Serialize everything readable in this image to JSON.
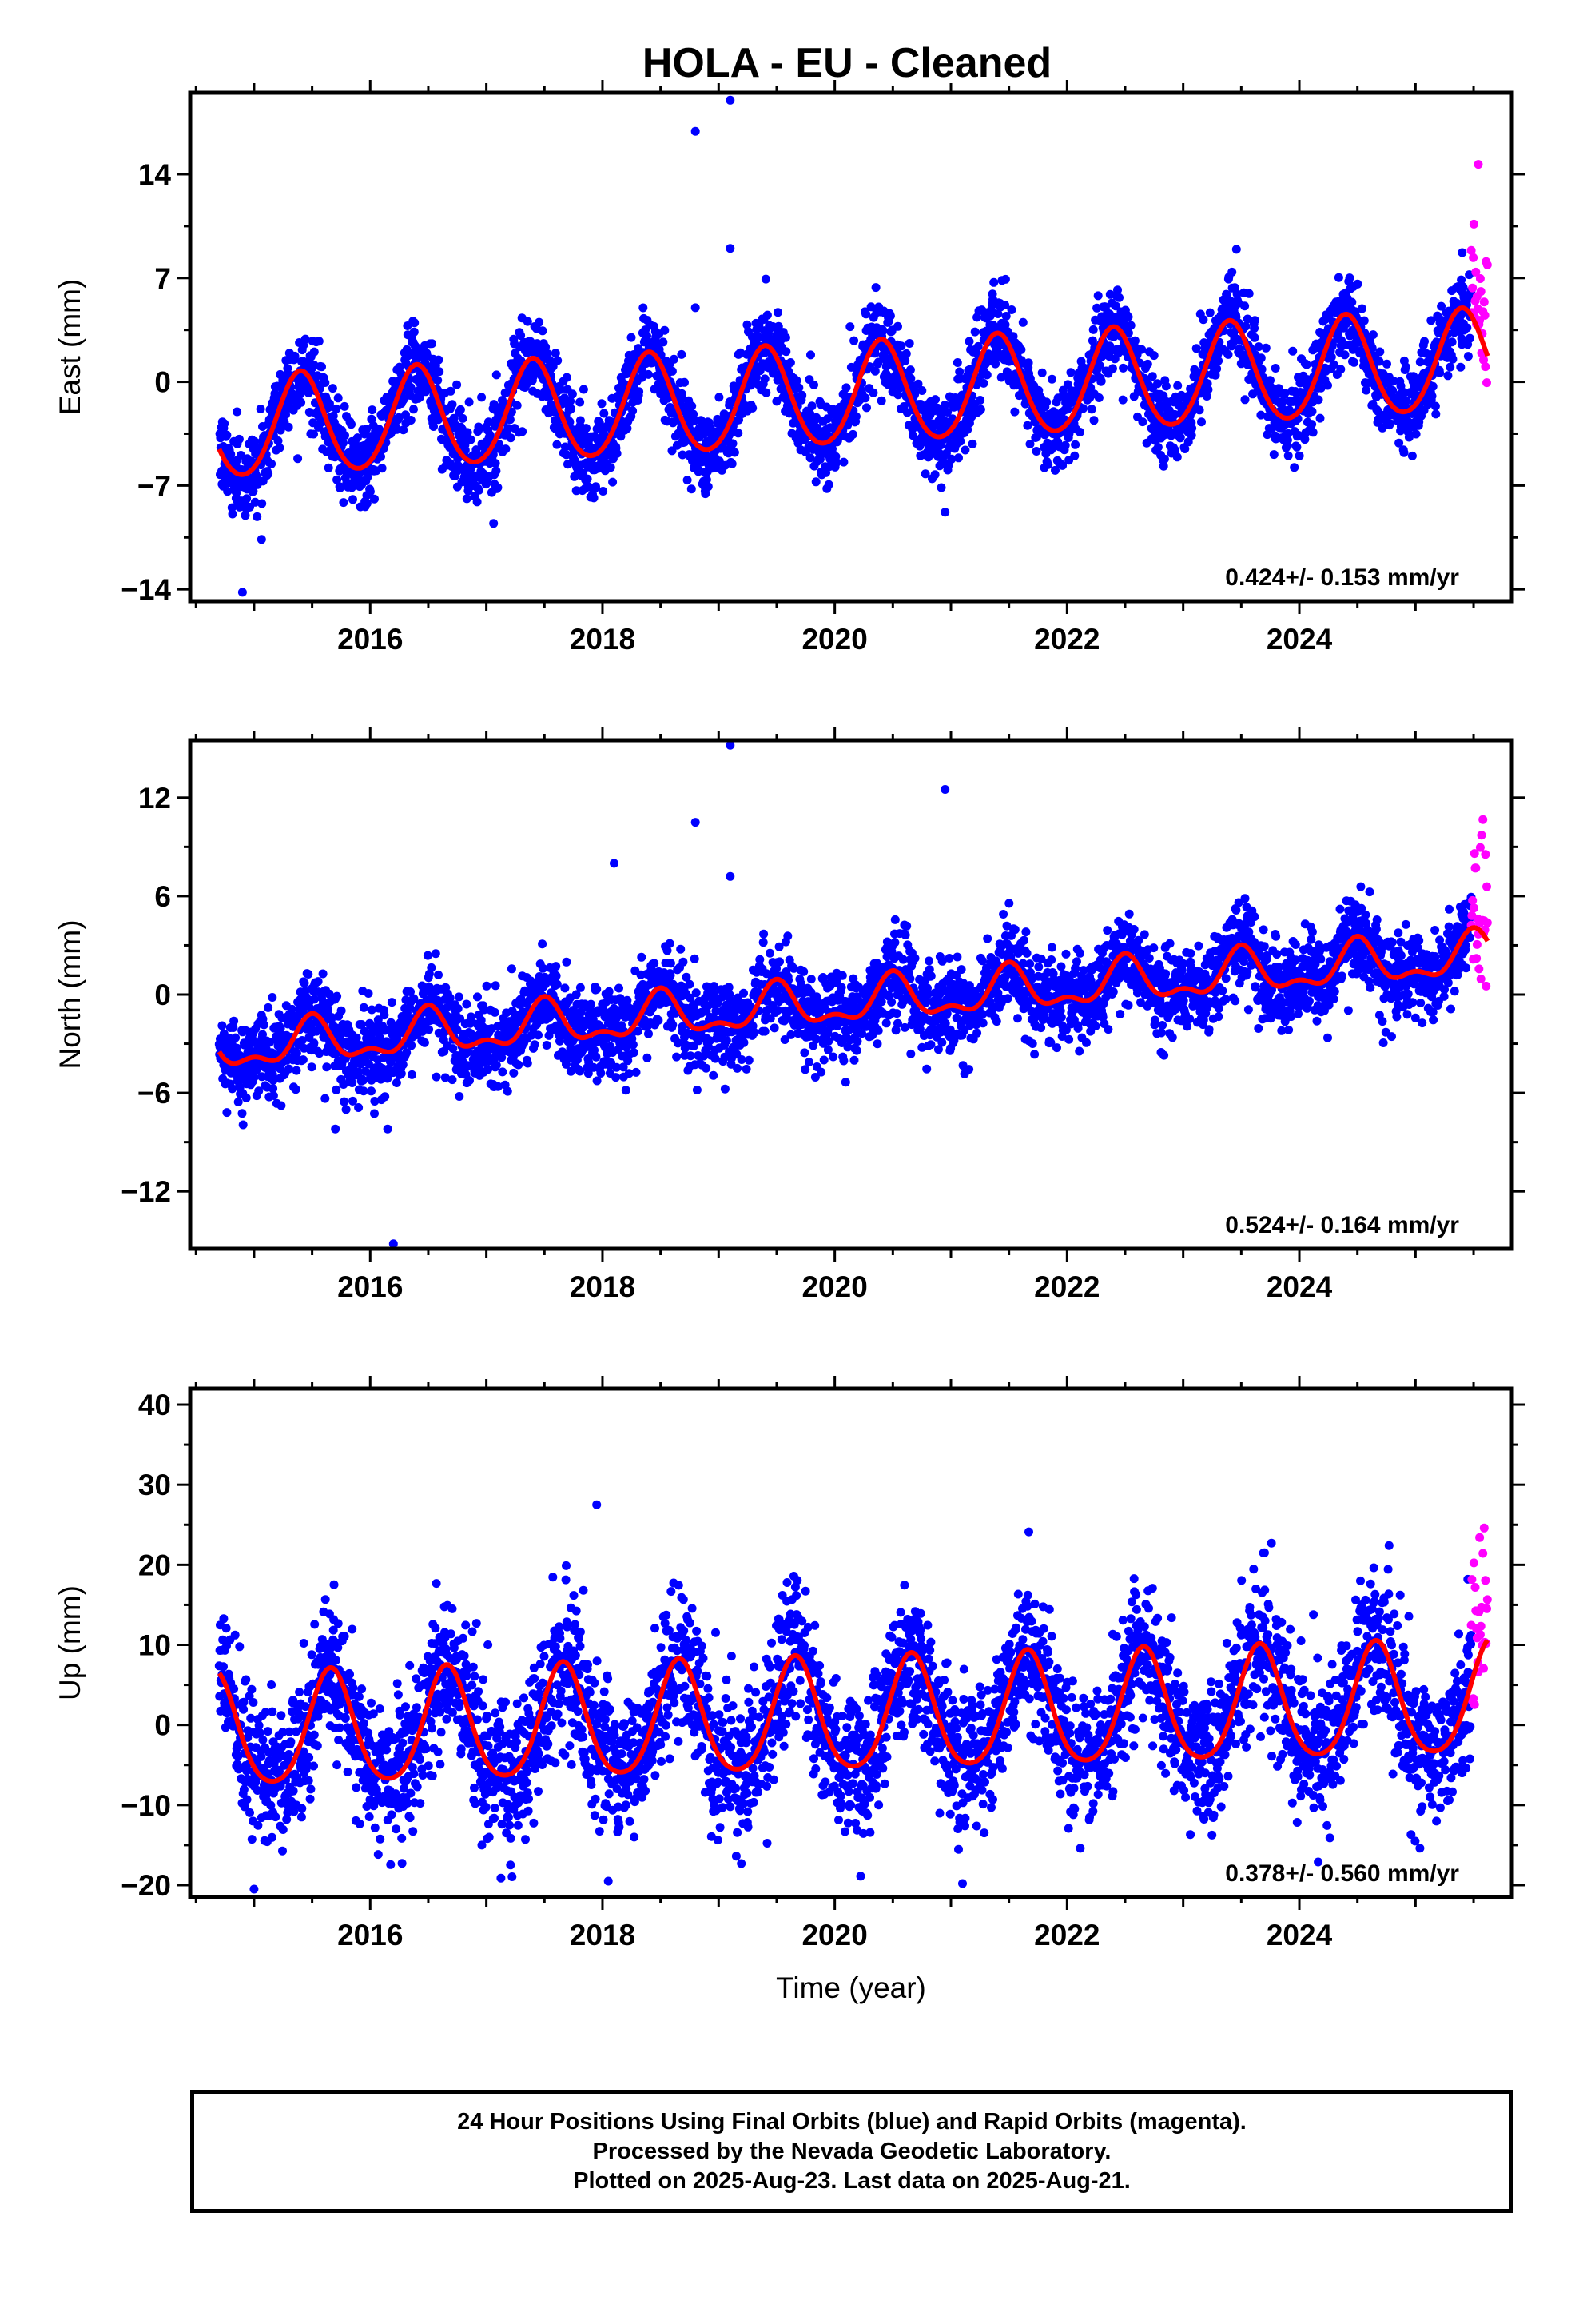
{
  "title": "HOLA  - EU - Cleaned",
  "footer": {
    "line1": "24 Hour Positions Using Final Orbits (blue) and Rapid Orbits (magenta).",
    "line2": "Processed by the Nevada Geodetic Laboratory.",
    "line3": "Plotted on 2025-Aug-23. Last data on 2025-Aug-21."
  },
  "colors": {
    "final_orbits": "#0000ff",
    "rapid_orbits": "#ff00ff",
    "model_fit": "#ff0000",
    "frame": "#000000"
  },
  "chart_data": [
    {
      "type": "scatter",
      "component": "East",
      "ylabel": "East (mm)",
      "xlabel": "",
      "xlim": [
        2014.45,
        2025.83
      ],
      "ylim": [
        -14.8,
        19.5
      ],
      "xticks": [
        "2016",
        "2018",
        "2020",
        "2022",
        "2024"
      ],
      "yticks": [
        "14",
        "7",
        "0",
        "-7",
        "-14"
      ],
      "yticks_values": [
        14,
        7,
        0,
        -7,
        -14
      ],
      "rate_annotation": "0.424+/- 0.153 mm/yr",
      "x_start": 2014.7,
      "x_end": 2025.62,
      "rapid_start": 2025.48,
      "trend_mm_per_yr": 0.424,
      "offset_at_2020": -1.0,
      "annual_amplitude": 3.4,
      "annual_peak_month_frac": 0.4,
      "semiannual_amplitude": 0.3,
      "scatter_sd": 1.4,
      "outliers": [
        {
          "x": 2014.9,
          "y": -14.2
        },
        {
          "x": 2018.8,
          "y": 16.9
        },
        {
          "x": 2019.1,
          "y": 19.0
        },
        {
          "x": 2019.1,
          "y": 9.0
        },
        {
          "x": 2018.8,
          "y": 5.0
        },
        {
          "x": 2020.95,
          "y": -8.8
        }
      ],
      "series": [
        {
          "name": "Final Orbits",
          "color": "#0000ff"
        },
        {
          "name": "Rapid Orbits",
          "color": "#ff00ff"
        },
        {
          "name": "Model Fit",
          "color": "#ff0000"
        }
      ]
    },
    {
      "type": "scatter",
      "component": "North",
      "ylabel": "North (mm)",
      "xlabel": "",
      "xlim": [
        2014.45,
        2025.83
      ],
      "ylim": [
        -15.5,
        15.5
      ],
      "xticks": [
        "2016",
        "2018",
        "2020",
        "2022",
        "2024"
      ],
      "yticks": [
        "12",
        "6",
        "0",
        "-6",
        "-12"
      ],
      "yticks_values": [
        12,
        6,
        0,
        -6,
        -12
      ],
      "rate_annotation": "0.524+/- 0.164 mm/yr",
      "x_start": 2014.7,
      "x_end": 2025.62,
      "rapid_start": 2025.48,
      "trend_mm_per_yr": 0.524,
      "offset_at_2020": -0.6,
      "annual_amplitude": 1.2,
      "annual_peak_month_frac": 0.5,
      "semiannual_amplitude": 0.6,
      "scatter_sd": 1.3,
      "outliers": [
        {
          "x": 2016.2,
          "y": -15.2
        },
        {
          "x": 2018.1,
          "y": 8.0
        },
        {
          "x": 2018.8,
          "y": 10.5
        },
        {
          "x": 2019.1,
          "y": 15.2
        },
        {
          "x": 2019.1,
          "y": 7.2
        },
        {
          "x": 2020.95,
          "y": 12.5
        },
        {
          "x": 2015.7,
          "y": -8.2
        },
        {
          "x": 2016.15,
          "y": -8.2
        }
      ],
      "series": [
        {
          "name": "Final Orbits",
          "color": "#0000ff"
        },
        {
          "name": "Rapid Orbits",
          "color": "#ff00ff"
        },
        {
          "name": "Model Fit",
          "color": "#ff0000"
        }
      ]
    },
    {
      "type": "scatter",
      "component": "Up",
      "ylabel": "Up (mm)",
      "xlabel": "Time (year)",
      "xlim": [
        2014.45,
        2025.83
      ],
      "ylim": [
        -21.5,
        42.0
      ],
      "xticks": [
        "2016",
        "2018",
        "2020",
        "2022",
        "2024"
      ],
      "yticks": [
        "40",
        "30",
        "20",
        "10",
        "0",
        "-10",
        "-20"
      ],
      "yticks_values": [
        40,
        30,
        20,
        10,
        0,
        -10,
        -20
      ],
      "rate_annotation": "0.378+/- 0.560 mm/yr",
      "x_start": 2014.7,
      "x_end": 2025.62,
      "rapid_start": 2025.48,
      "trend_mm_per_yr": 0.378,
      "offset_at_2020": 0.8,
      "annual_amplitude": 7.0,
      "annual_peak_month_frac": 0.66,
      "semiannual_amplitude": 1.0,
      "scatter_sd": 4.5,
      "outliers": [
        {
          "x": 2015.0,
          "y": -20.5
        },
        {
          "x": 2017.95,
          "y": 27.5
        },
        {
          "x": 2018.05,
          "y": -19.5
        },
        {
          "x": 2021.1,
          "y": -19.8
        },
        {
          "x": 2023.7,
          "y": 21.5
        },
        {
          "x": 2025.45,
          "y": 18.2
        }
      ],
      "series": [
        {
          "name": "Final Orbits",
          "color": "#0000ff"
        },
        {
          "name": "Rapid Orbits",
          "color": "#ff00ff"
        },
        {
          "name": "Model Fit",
          "color": "#ff0000"
        }
      ]
    }
  ]
}
